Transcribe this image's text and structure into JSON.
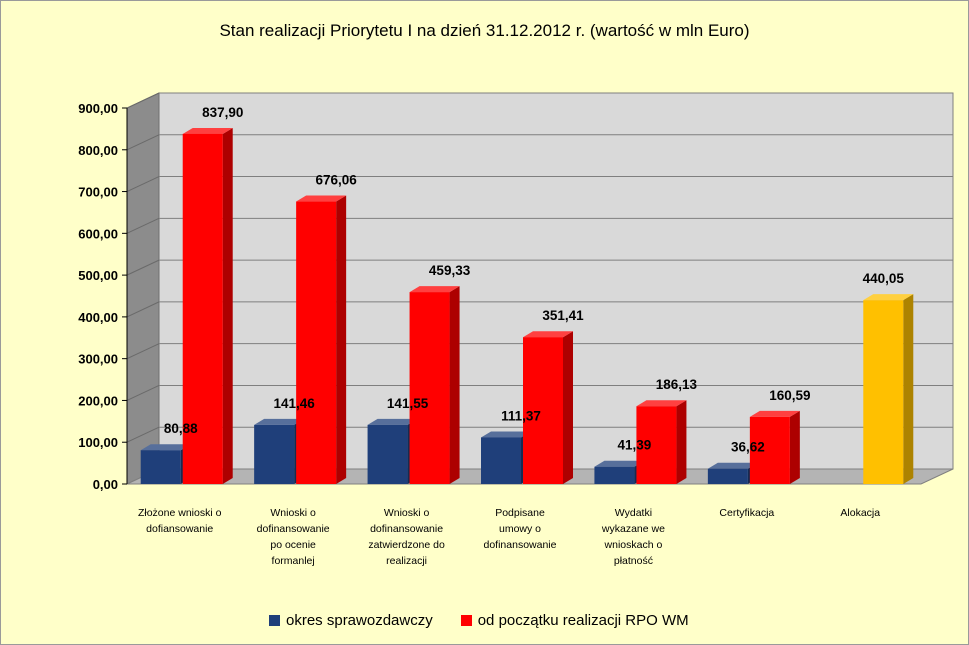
{
  "chart_data": {
    "type": "bar",
    "title": "Stan realizacji Priorytetu I na dzień 31.12.2012  r. (wartość w mln Euro)",
    "xlabel": "",
    "ylabel": "",
    "ylim": [
      0,
      900
    ],
    "ytick_step": 100,
    "ytick_labels": [
      "0,00",
      "100,00",
      "200,00",
      "300,00",
      "400,00",
      "500,00",
      "600,00",
      "700,00",
      "800,00",
      "900,00"
    ],
    "grid": true,
    "legend_position": "bottom",
    "categories": [
      [
        "Złożone wnioski  o",
        "dofiansowanie"
      ],
      [
        "Wnioski o",
        "dofinansowanie",
        "po ocenie",
        "formanlej"
      ],
      [
        "Wnioski o",
        "dofinansowanie",
        "zatwierdzone do",
        "realizacji"
      ],
      [
        "Podpisane",
        "umowy o",
        "dofinansowanie"
      ],
      [
        "Wydatki",
        "wykazane we",
        "wnioskach  o",
        "płatność"
      ],
      [
        "Certyfikacja"
      ],
      [
        "Alokacja"
      ]
    ],
    "series": [
      {
        "name": "okres sprawozdawczy",
        "color": "#1f3f7a",
        "values": [
          80.88,
          141.46,
          141.55,
          111.37,
          41.39,
          36.62,
          null
        ],
        "labels": [
          "80,88",
          "141,46",
          "141,55",
          "111,37",
          "41,39",
          "36,62",
          null
        ]
      },
      {
        "name": "od początku realizacji RPO WM",
        "color": "#ff0000",
        "values": [
          837.9,
          676.06,
          459.33,
          351.41,
          186.13,
          160.59,
          null
        ],
        "labels": [
          "837,90",
          "676,06",
          "459,33",
          "351,41",
          "186,13",
          "160,59",
          null
        ]
      }
    ],
    "extra_bars": [
      {
        "category_index": 6,
        "value": 440.05,
        "label": "440,05",
        "color": "#ffc000"
      }
    ],
    "colors": {
      "background": "#ffffc9",
      "plot_wall": "#d9d9d9",
      "side_wall": "#8c8c8c",
      "floor": "#b4b4b4"
    }
  }
}
